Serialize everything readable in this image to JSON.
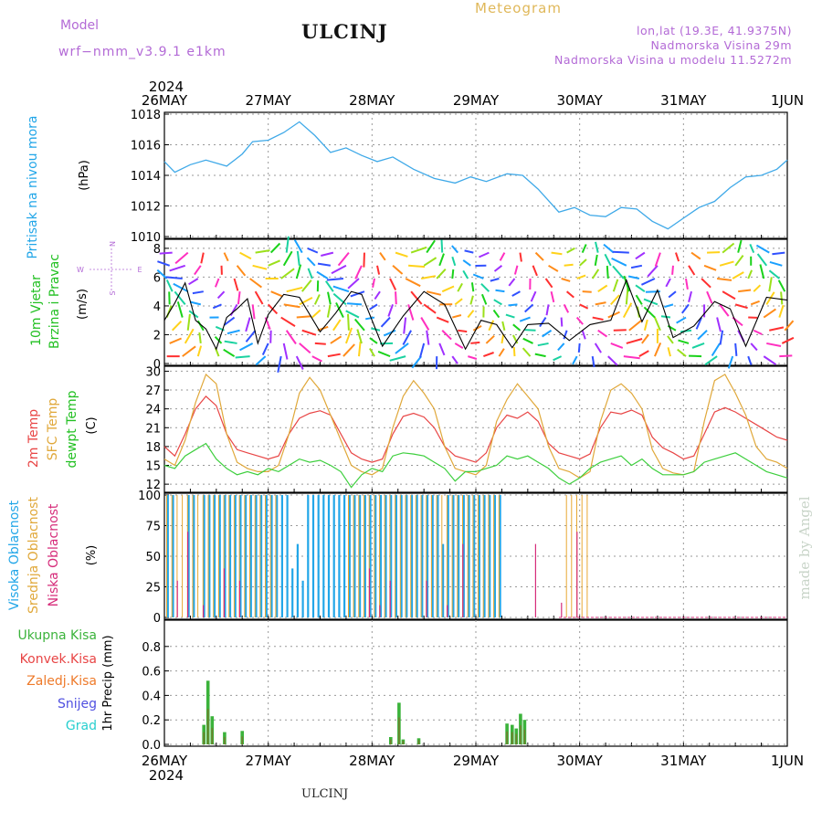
{
  "header": {
    "model_label": "Model",
    "model_name": "wrf−nmm_v3.9.1  e1km",
    "station": "ULCINJ",
    "meteogram": "Meteogram",
    "lonlat": "lon,lat (19.3E, 41.9375N)",
    "elevation": "Nadmorska Visina 29m",
    "model_elevation": "Nadmorska Visina u modelu 11.5272m"
  },
  "footer_station": "ULCINJ",
  "watermark": "made by Angel",
  "colors": {
    "pressure": "#3fa9e8",
    "temp2m": "#e84545",
    "sfc_temp": "#e0a83a",
    "dewpt": "#3dcf3d",
    "high_cloud": "#22a6e8",
    "mid_cloud": "#e8a832",
    "low_cloud": "#d62c7a",
    "total_precip": "#3bb33b",
    "conv_precip": "#e84545",
    "frozen_precip": "#ee7a2a",
    "snow": "#5050e0",
    "hail": "#28cfcf",
    "ylabel_purple": "#b36ad6"
  },
  "chart_data": [
    {
      "type": "line",
      "panel": "pressure",
      "ylabel_main": "Pritisak na nivou mora",
      "unit": "(hPa)",
      "xlabels_top": [
        "26MAY",
        "27MAY",
        "28MAY",
        "29MAY",
        "30MAY",
        "31MAY",
        "1JUN"
      ],
      "year": "2024",
      "ylim": [
        1010,
        1018
      ],
      "yticks": [
        1010,
        1012,
        1014,
        1016,
        1018
      ],
      "grid": true,
      "x_days": [
        0,
        0.1,
        0.25,
        0.4,
        0.6,
        0.75,
        0.85,
        1.0,
        1.15,
        1.3,
        1.45,
        1.6,
        1.75,
        1.9,
        2.05,
        2.2,
        2.4,
        2.6,
        2.8,
        2.95,
        3.1,
        3.3,
        3.45,
        3.6,
        3.8,
        3.95,
        4.1,
        4.25,
        4.4,
        4.55,
        4.7,
        4.85,
        5.0,
        5.15,
        5.3,
        5.45,
        5.6,
        5.75,
        5.9,
        6.0
      ],
      "values": [
        1014.9,
        1014.2,
        1014.7,
        1015.0,
        1014.6,
        1015.4,
        1016.2,
        1016.3,
        1016.8,
        1017.5,
        1016.6,
        1015.5,
        1015.8,
        1015.3,
        1014.9,
        1015.2,
        1014.4,
        1013.8,
        1013.5,
        1013.9,
        1013.6,
        1014.1,
        1014.0,
        1013.1,
        1011.6,
        1011.9,
        1011.4,
        1011.3,
        1011.9,
        1011.8,
        1011.0,
        1010.5,
        1011.2,
        1011.9,
        1012.3,
        1013.2,
        1013.9,
        1014.0,
        1014.4,
        1015.0
      ]
    },
    {
      "type": "line",
      "panel": "wind",
      "ylabel_main": "10m Vjetar",
      "ylabel_sub": "Brzina i Pravac",
      "unit": "(m/s)",
      "compass": [
        "N",
        "W",
        "E",
        "S"
      ],
      "ylim": [
        0,
        8.5
      ],
      "yticks": [
        0,
        2,
        4,
        6,
        8
      ],
      "grid": true,
      "x_days": [
        0,
        0.1,
        0.2,
        0.3,
        0.4,
        0.5,
        0.6,
        0.7,
        0.8,
        0.9,
        1.0,
        1.15,
        1.3,
        1.5,
        1.65,
        1.8,
        1.9,
        2.1,
        2.3,
        2.5,
        2.7,
        2.9,
        3.05,
        3.2,
        3.35,
        3.5,
        3.7,
        3.9,
        4.1,
        4.3,
        4.45,
        4.6,
        4.75,
        4.9,
        5.1,
        5.3,
        5.45,
        5.6,
        5.8,
        6.0
      ],
      "values": [
        3.0,
        4.2,
        5.6,
        3.0,
        2.4,
        1.0,
        3.2,
        3.8,
        4.5,
        1.4,
        3.4,
        4.8,
        4.6,
        2.2,
        3.5,
        5.0,
        4.8,
        1.2,
        3.3,
        5.0,
        4.1,
        1.0,
        3.0,
        2.7,
        1.1,
        2.7,
        2.8,
        1.6,
        2.7,
        3.0,
        5.8,
        2.9,
        5.1,
        1.8,
        2.6,
        4.3,
        3.8,
        1.2,
        4.6,
        4.4
      ],
      "barbs": [
        {
          "x": 0.05,
          "speed": 4
        },
        {
          "x": 0.2,
          "speed": 6
        },
        {
          "x": 0.35,
          "speed": 3
        },
        {
          "x": 0.55,
          "speed": 2
        },
        {
          "x": 0.7,
          "speed": 4
        },
        {
          "x": 0.85,
          "speed": 5
        },
        {
          "x": 1.0,
          "speed": 4
        },
        {
          "x": 1.15,
          "speed": 6
        },
        {
          "x": 1.3,
          "speed": 5
        },
        {
          "x": 1.45,
          "speed": 3
        },
        {
          "x": 1.6,
          "speed": 4
        },
        {
          "x": 1.75,
          "speed": 6
        },
        {
          "x": 1.9,
          "speed": 5
        },
        {
          "x": 2.05,
          "speed": 2
        },
        {
          "x": 2.2,
          "speed": 4
        },
        {
          "x": 2.35,
          "speed": 6
        },
        {
          "x": 2.5,
          "speed": 5
        },
        {
          "x": 2.65,
          "speed": 4
        },
        {
          "x": 2.8,
          "speed": 2
        },
        {
          "x": 2.95,
          "speed": 2
        },
        {
          "x": 3.1,
          "speed": 3
        },
        {
          "x": 3.25,
          "speed": 2
        },
        {
          "x": 3.4,
          "speed": 2
        },
        {
          "x": 3.55,
          "speed": 3
        },
        {
          "x": 3.7,
          "speed": 3
        },
        {
          "x": 3.85,
          "speed": 2
        },
        {
          "x": 4.0,
          "speed": 2
        },
        {
          "x": 4.15,
          "speed": 3
        },
        {
          "x": 4.3,
          "speed": 4
        },
        {
          "x": 4.45,
          "speed": 6
        },
        {
          "x": 4.6,
          "speed": 3
        },
        {
          "x": 4.75,
          "speed": 5
        },
        {
          "x": 4.9,
          "speed": 2
        },
        {
          "x": 5.05,
          "speed": 3
        },
        {
          "x": 5.2,
          "speed": 4
        },
        {
          "x": 5.35,
          "speed": 5
        },
        {
          "x": 5.5,
          "speed": 4
        },
        {
          "x": 5.65,
          "speed": 2
        },
        {
          "x": 5.8,
          "speed": 5
        },
        {
          "x": 5.95,
          "speed": 4
        }
      ]
    },
    {
      "type": "line",
      "panel": "temperature",
      "ylabels": [
        "2m Temp",
        "SFC Temp",
        "dewpt Temp"
      ],
      "unit": "(C)",
      "ylim": [
        11,
        30.5
      ],
      "yticks": [
        12,
        15,
        18,
        21,
        24,
        27,
        30
      ],
      "grid": true,
      "x_days": [
        0,
        0.1,
        0.2,
        0.3,
        0.4,
        0.5,
        0.6,
        0.7,
        0.8,
        0.9,
        1.0,
        1.1,
        1.2,
        1.3,
        1.4,
        1.5,
        1.6,
        1.7,
        1.8,
        1.9,
        2.0,
        2.1,
        2.2,
        2.3,
        2.4,
        2.5,
        2.6,
        2.7,
        2.8,
        2.9,
        3.0,
        3.1,
        3.2,
        3.3,
        3.4,
        3.5,
        3.6,
        3.7,
        3.8,
        3.9,
        4.0,
        4.1,
        4.2,
        4.3,
        4.4,
        4.5,
        4.6,
        4.7,
        4.8,
        4.9,
        5.0,
        5.1,
        5.2,
        5.3,
        5.4,
        5.5,
        5.6,
        5.7,
        5.8,
        5.9,
        6.0
      ],
      "series": [
        {
          "name": "2m Temp",
          "values": [
            18.0,
            16.5,
            20.0,
            24.0,
            26.0,
            24.5,
            20.0,
            17.5,
            17.0,
            16.5,
            16.0,
            16.5,
            20.0,
            22.5,
            23.3,
            23.7,
            23.0,
            20.0,
            17.0,
            16.0,
            15.5,
            16.0,
            20.0,
            22.8,
            23.3,
            22.7,
            21.0,
            18.0,
            16.5,
            16.0,
            15.5,
            17.0,
            21.0,
            23.0,
            22.5,
            23.5,
            22.0,
            18.5,
            17.0,
            16.5,
            16.0,
            16.8,
            21.0,
            23.5,
            23.2,
            23.8,
            23.0,
            19.5,
            17.8,
            17.0,
            16.0,
            16.5,
            20.0,
            23.5,
            24.2,
            23.5,
            22.5,
            21.5,
            20.5,
            19.5,
            19.0
          ]
        },
        {
          "name": "SFC Temp",
          "values": [
            16.0,
            15.0,
            19.0,
            25.0,
            29.5,
            28.0,
            20.0,
            15.5,
            14.5,
            14.0,
            14.0,
            15.0,
            20.0,
            26.5,
            29.0,
            27.0,
            23.0,
            19.0,
            15.0,
            14.0,
            13.5,
            14.5,
            21.0,
            26.0,
            28.5,
            26.5,
            24.0,
            18.0,
            14.5,
            14.0,
            13.5,
            15.0,
            22.0,
            25.5,
            28.0,
            26.0,
            24.0,
            18.0,
            14.5,
            14.0,
            13.0,
            14.0,
            22.0,
            27.0,
            28.0,
            26.5,
            24.0,
            17.5,
            14.5,
            13.8,
            13.5,
            14.0,
            22.0,
            28.5,
            29.5,
            26.5,
            23.0,
            18.0,
            16.0,
            15.5,
            14.5
          ]
        },
        {
          "name": "dewpt Temp",
          "values": [
            15.0,
            14.5,
            16.5,
            17.5,
            18.5,
            16.0,
            14.5,
            13.5,
            14.0,
            13.5,
            14.5,
            14.0,
            15.0,
            16.0,
            15.5,
            15.8,
            15.0,
            14.0,
            11.5,
            13.5,
            14.5,
            14.0,
            16.5,
            17.0,
            16.8,
            16.5,
            15.5,
            14.5,
            12.5,
            14.0,
            14.0,
            14.5,
            15.0,
            16.5,
            16.0,
            16.5,
            15.5,
            14.5,
            13.0,
            12.0,
            13.0,
            14.5,
            15.5,
            16.0,
            16.5,
            15.0,
            16.0,
            14.5,
            13.5,
            13.5,
            13.5,
            14.0,
            15.5,
            16.0,
            16.5,
            17.0,
            16.0,
            15.0,
            14.0,
            13.5,
            13.0
          ]
        }
      ]
    },
    {
      "type": "bar",
      "panel": "cloud",
      "ylabels": [
        "Visoka Oblacnost",
        "Srednja Oblacnost",
        "Niska Oblacnost"
      ],
      "unit": "(%)",
      "ylim": [
        0,
        100
      ],
      "yticks": [
        0,
        25,
        50,
        75,
        100
      ],
      "grid": true,
      "series": [
        {
          "name": "Visoka Oblacnost",
          "values": [
            100,
            100,
            0,
            0,
            100,
            100,
            0,
            100,
            100,
            100,
            100,
            100,
            100,
            100,
            100,
            100,
            100,
            100,
            100,
            100,
            100,
            100,
            100,
            100,
            40,
            60,
            30,
            100,
            100,
            100,
            100,
            100,
            100,
            100,
            100,
            100,
            100,
            100,
            100,
            100,
            100,
            100,
            100,
            100,
            100,
            100,
            100,
            100,
            100,
            100,
            100,
            100,
            100,
            60,
            100,
            100,
            100,
            100,
            100,
            100,
            100,
            100,
            100,
            100,
            100,
            0,
            0,
            0,
            0,
            0,
            0,
            0,
            0,
            0,
            0,
            0,
            0,
            0,
            0,
            0,
            0,
            0,
            0,
            0,
            0,
            0,
            0,
            0,
            0,
            0,
            0,
            0,
            0,
            0,
            0,
            0,
            0,
            0,
            0,
            0,
            0,
            0,
            0,
            0,
            0,
            0,
            0,
            0,
            0,
            0,
            0,
            0,
            0,
            0,
            0,
            0,
            0,
            0,
            0,
            0
          ]
        },
        {
          "name": "Srednja Oblacnost",
          "values": [
            100,
            100,
            100,
            100,
            100,
            100,
            100,
            100,
            100,
            100,
            100,
            100,
            100,
            100,
            100,
            100,
            100,
            100,
            100,
            100,
            100,
            100,
            0,
            0,
            0,
            0,
            0,
            0,
            0,
            0,
            0,
            0,
            0,
            0,
            0,
            100,
            100,
            100,
            100,
            100,
            100,
            100,
            100,
            100,
            100,
            100,
            100,
            100,
            100,
            100,
            100,
            100,
            100,
            100,
            100,
            100,
            100,
            100,
            100,
            100,
            100,
            100,
            100,
            100,
            100,
            0,
            0,
            0,
            0,
            0,
            0,
            0,
            0,
            0,
            0,
            0,
            0,
            100,
            100,
            100,
            100,
            100,
            0,
            0,
            0,
            0,
            0,
            0,
            0,
            0,
            0,
            0,
            0,
            0,
            0,
            0,
            0,
            0,
            0,
            0,
            0,
            0,
            0,
            0,
            0,
            0,
            0,
            0,
            0,
            0,
            0,
            0,
            0,
            0,
            0,
            0,
            0,
            0,
            0,
            0
          ]
        },
        {
          "name": "Niska Oblacnost",
          "values": [
            0,
            0,
            30,
            0,
            70,
            0,
            0,
            10,
            0,
            0,
            0,
            40,
            0,
            0,
            30,
            0,
            0,
            0,
            0,
            0,
            0,
            0,
            0,
            0,
            0,
            0,
            0,
            0,
            0,
            0,
            0,
            0,
            0,
            0,
            0,
            0,
            0,
            0,
            0,
            40,
            0,
            10,
            0,
            30,
            0,
            0,
            0,
            0,
            0,
            0,
            30,
            0,
            0,
            0,
            10,
            0,
            0,
            60,
            0,
            0,
            0,
            0,
            0,
            0,
            0,
            0,
            0,
            0,
            0,
            0,
            0,
            60,
            0,
            0,
            0,
            0,
            12,
            0,
            0,
            70,
            0,
            0,
            0,
            0,
            0,
            0,
            0,
            0,
            0,
            0,
            0,
            0,
            0,
            0,
            0,
            0,
            0,
            0,
            0,
            0,
            0,
            0,
            0,
            0,
            0,
            0,
            0,
            0,
            0,
            0,
            0,
            0,
            0,
            0,
            0,
            0,
            0,
            0,
            0,
            0
          ]
        }
      ]
    },
    {
      "type": "bar",
      "panel": "precip",
      "ylabels": [
        "Ukupna Kisa",
        "Konvek.Kisa",
        "Zaledj.Kisa",
        "Snijeg",
        "Grad"
      ],
      "ylabel_axis": "1hr Precip (mm)",
      "xlabels_bottom": [
        "26MAY",
        "27MAY",
        "28MAY",
        "29MAY",
        "30MAY",
        "31MAY",
        "1JUN"
      ],
      "year": "2024",
      "ylim": [
        0,
        1.0
      ],
      "yticks": [
        0,
        0.2,
        0.4,
        0.6,
        0.8
      ],
      "grid": true,
      "bars": [
        {
          "x": 0.38,
          "total": 0.16,
          "conv": 0.02
        },
        {
          "x": 0.42,
          "total": 0.52,
          "conv": 0.03
        },
        {
          "x": 0.46,
          "total": 0.23,
          "conv": 0.02
        },
        {
          "x": 0.58,
          "total": 0.1,
          "conv": 0.01
        },
        {
          "x": 0.75,
          "total": 0.11,
          "conv": 0.01
        },
        {
          "x": 2.18,
          "total": 0.06,
          "conv": 0.01
        },
        {
          "x": 2.26,
          "total": 0.34,
          "conv": 0.05
        },
        {
          "x": 2.3,
          "total": 0.04,
          "conv": 0.01
        },
        {
          "x": 2.45,
          "total": 0.05,
          "conv": 0.01
        },
        {
          "x": 3.3,
          "total": 0.17,
          "conv": 0.02
        },
        {
          "x": 3.35,
          "total": 0.16,
          "conv": 0.02
        },
        {
          "x": 3.39,
          "total": 0.13,
          "conv": 0.02
        },
        {
          "x": 3.43,
          "total": 0.25,
          "conv": 0.03
        },
        {
          "x": 3.47,
          "total": 0.2,
          "conv": 0.02
        }
      ]
    }
  ]
}
